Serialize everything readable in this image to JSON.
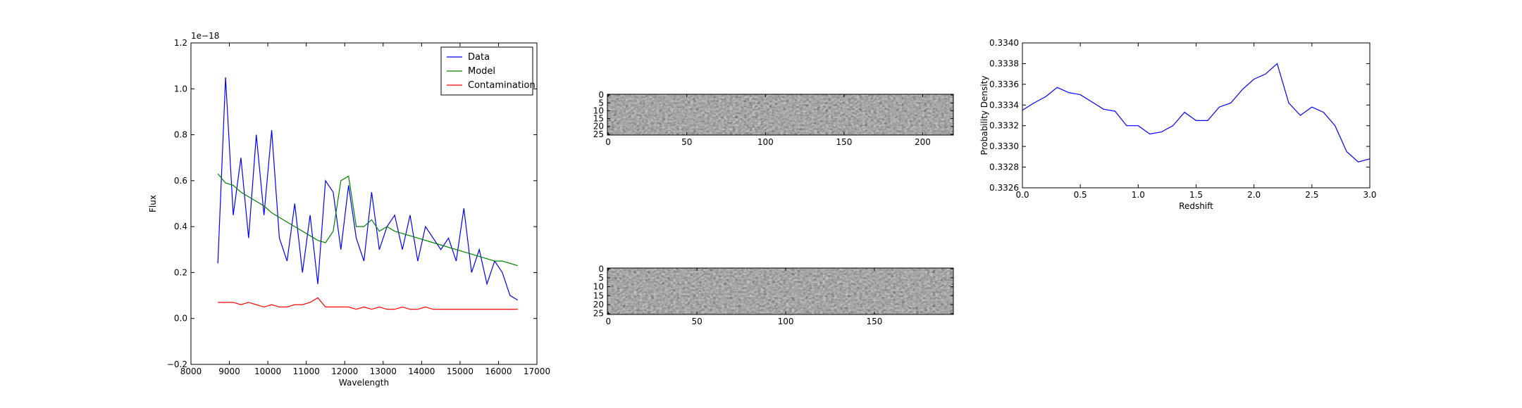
{
  "chart_data": [
    {
      "type": "line",
      "xlabel": "Wavelength",
      "ylabel": "Flux",
      "offset_text": "1e−18",
      "x": [
        8700,
        8900,
        9100,
        9300,
        9500,
        9700,
        9900,
        10100,
        10300,
        10500,
        10700,
        10900,
        11100,
        11300,
        11500,
        11700,
        11900,
        12100,
        12300,
        12500,
        12700,
        12900,
        13100,
        13300,
        13500,
        13700,
        13900,
        14100,
        14300,
        14500,
        14700,
        14900,
        15100,
        15300,
        15500,
        15700,
        15900,
        16100,
        16300,
        16500
      ],
      "series": [
        {
          "name": "Data",
          "color": "#0000ff",
          "values": [
            0.24,
            1.05,
            0.45,
            0.7,
            0.35,
            0.8,
            0.45,
            0.82,
            0.35,
            0.25,
            0.5,
            0.2,
            0.45,
            0.15,
            0.6,
            0.55,
            0.3,
            0.58,
            0.35,
            0.25,
            0.55,
            0.3,
            0.4,
            0.45,
            0.3,
            0.45,
            0.25,
            0.4,
            0.35,
            0.3,
            0.35,
            0.25,
            0.48,
            0.2,
            0.3,
            0.15,
            0.25,
            0.2,
            0.1,
            0.08
          ]
        },
        {
          "name": "Model",
          "color": "#008000",
          "values": [
            0.63,
            0.59,
            0.58,
            0.55,
            0.53,
            0.51,
            0.49,
            0.46,
            0.44,
            0.42,
            0.4,
            0.38,
            0.36,
            0.34,
            0.33,
            0.38,
            0.6,
            0.62,
            0.4,
            0.4,
            0.43,
            0.38,
            0.4,
            0.38,
            0.37,
            0.36,
            0.35,
            0.34,
            0.33,
            0.32,
            0.31,
            0.3,
            0.29,
            0.28,
            0.27,
            0.26,
            0.25,
            0.25,
            0.24,
            0.23
          ]
        },
        {
          "name": "Contamination",
          "color": "#ff0000",
          "values": [
            0.07,
            0.07,
            0.07,
            0.06,
            0.07,
            0.06,
            0.05,
            0.06,
            0.05,
            0.05,
            0.06,
            0.06,
            0.07,
            0.09,
            0.05,
            0.05,
            0.05,
            0.05,
            0.04,
            0.05,
            0.04,
            0.05,
            0.04,
            0.04,
            0.05,
            0.04,
            0.04,
            0.05,
            0.04,
            0.04,
            0.04,
            0.04,
            0.04,
            0.04,
            0.04,
            0.04,
            0.04,
            0.04,
            0.04,
            0.04
          ]
        }
      ],
      "xlim": [
        8000,
        17000
      ],
      "xticks": [
        8000,
        9000,
        10000,
        11000,
        12000,
        13000,
        14000,
        15000,
        16000,
        17000
      ],
      "ylim": [
        -0.2,
        1.2
      ],
      "yticks": [
        {
          "value": -0.2,
          "label": "−0.2"
        },
        {
          "value": 0,
          "label": "0.0"
        },
        0.2,
        0.4,
        0.6,
        0.8,
        {
          "value": 1,
          "label": "1.0"
        },
        1.2
      ],
      "legend": "upper right"
    },
    {
      "type": "image",
      "xlim": [
        -0.5,
        219.5
      ],
      "xticks": [
        0,
        50,
        100,
        150,
        200
      ],
      "ylim": [
        25.5,
        -0.5
      ],
      "yticks": [
        0,
        5,
        10,
        15,
        20,
        25
      ]
    },
    {
      "type": "image",
      "xlim": [
        -0.5,
        194.5
      ],
      "xticks": [
        0,
        50,
        100,
        150
      ],
      "ylim": [
        25.5,
        -0.5
      ],
      "yticks": [
        0,
        5,
        10,
        15,
        20,
        25
      ]
    },
    {
      "type": "line",
      "xlabel": "Redshift",
      "ylabel": "Probability Density",
      "x": [
        0,
        0.1,
        0.2,
        0.3,
        0.4,
        0.5,
        0.6,
        0.7,
        0.8,
        0.9,
        1,
        1.1,
        1.2,
        1.3,
        1.4,
        1.5,
        1.6,
        1.7,
        1.8,
        1.9,
        2,
        2.1,
        2.2,
        2.3,
        2.4,
        2.5,
        2.6,
        2.7,
        2.8,
        2.9,
        3
      ],
      "series": [
        {
          "color": "#0000ff",
          "values": [
            0.33335,
            0.33342,
            0.33348,
            0.33357,
            0.33352,
            0.3335,
            0.33343,
            0.33336,
            0.33334,
            0.3332,
            0.3332,
            0.33312,
            0.33314,
            0.3332,
            0.33333,
            0.33325,
            0.33325,
            0.33338,
            0.33342,
            0.33355,
            0.33365,
            0.3337,
            0.3338,
            0.33342,
            0.3333,
            0.33338,
            0.33333,
            0.3332,
            0.33295,
            0.33285,
            0.33288
          ]
        }
      ],
      "xlim": [
        0,
        3
      ],
      "xticks": [
        {
          "value": 0,
          "label": "0.0"
        },
        0.5,
        {
          "value": 1,
          "label": "1.0"
        },
        1.5,
        {
          "value": 2,
          "label": "2.0"
        },
        2.5,
        {
          "value": 3,
          "label": "3.0"
        }
      ],
      "ylim": [
        0.3326,
        0.334
      ],
      "yticks": [
        0.3326,
        0.3328,
        {
          "value": 0.333,
          "label": "0.3330"
        },
        0.3332,
        0.3334,
        0.3336,
        0.3338,
        {
          "value": 0.334,
          "label": "0.3340"
        }
      ]
    }
  ]
}
